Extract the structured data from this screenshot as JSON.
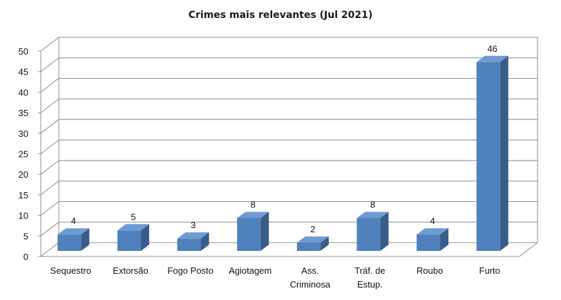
{
  "chart_data": {
    "type": "bar",
    "title": "Crimes mais relevantes (Jul 2021)",
    "categories": [
      [
        "Sequestro"
      ],
      [
        "Extorsão"
      ],
      [
        "Fogo Posto"
      ],
      [
        "Agiotagem"
      ],
      [
        "Ass.",
        "Criminosa"
      ],
      [
        "Tráf. de",
        "Estup."
      ],
      [
        "Roubo"
      ],
      [
        "Furto"
      ]
    ],
    "values": [
      4,
      5,
      3,
      8,
      2,
      8,
      4,
      46
    ],
    "ylim": [
      0,
      50
    ],
    "yticks": [
      0,
      5,
      10,
      15,
      20,
      25,
      30,
      35,
      40,
      45,
      50
    ],
    "style": "3d-column",
    "grid": true,
    "legend": false,
    "colors": {
      "front": "#4f81bd",
      "top": "#6f9bd4",
      "side": "#385d8a",
      "grid": "#8c8c8c"
    }
  }
}
